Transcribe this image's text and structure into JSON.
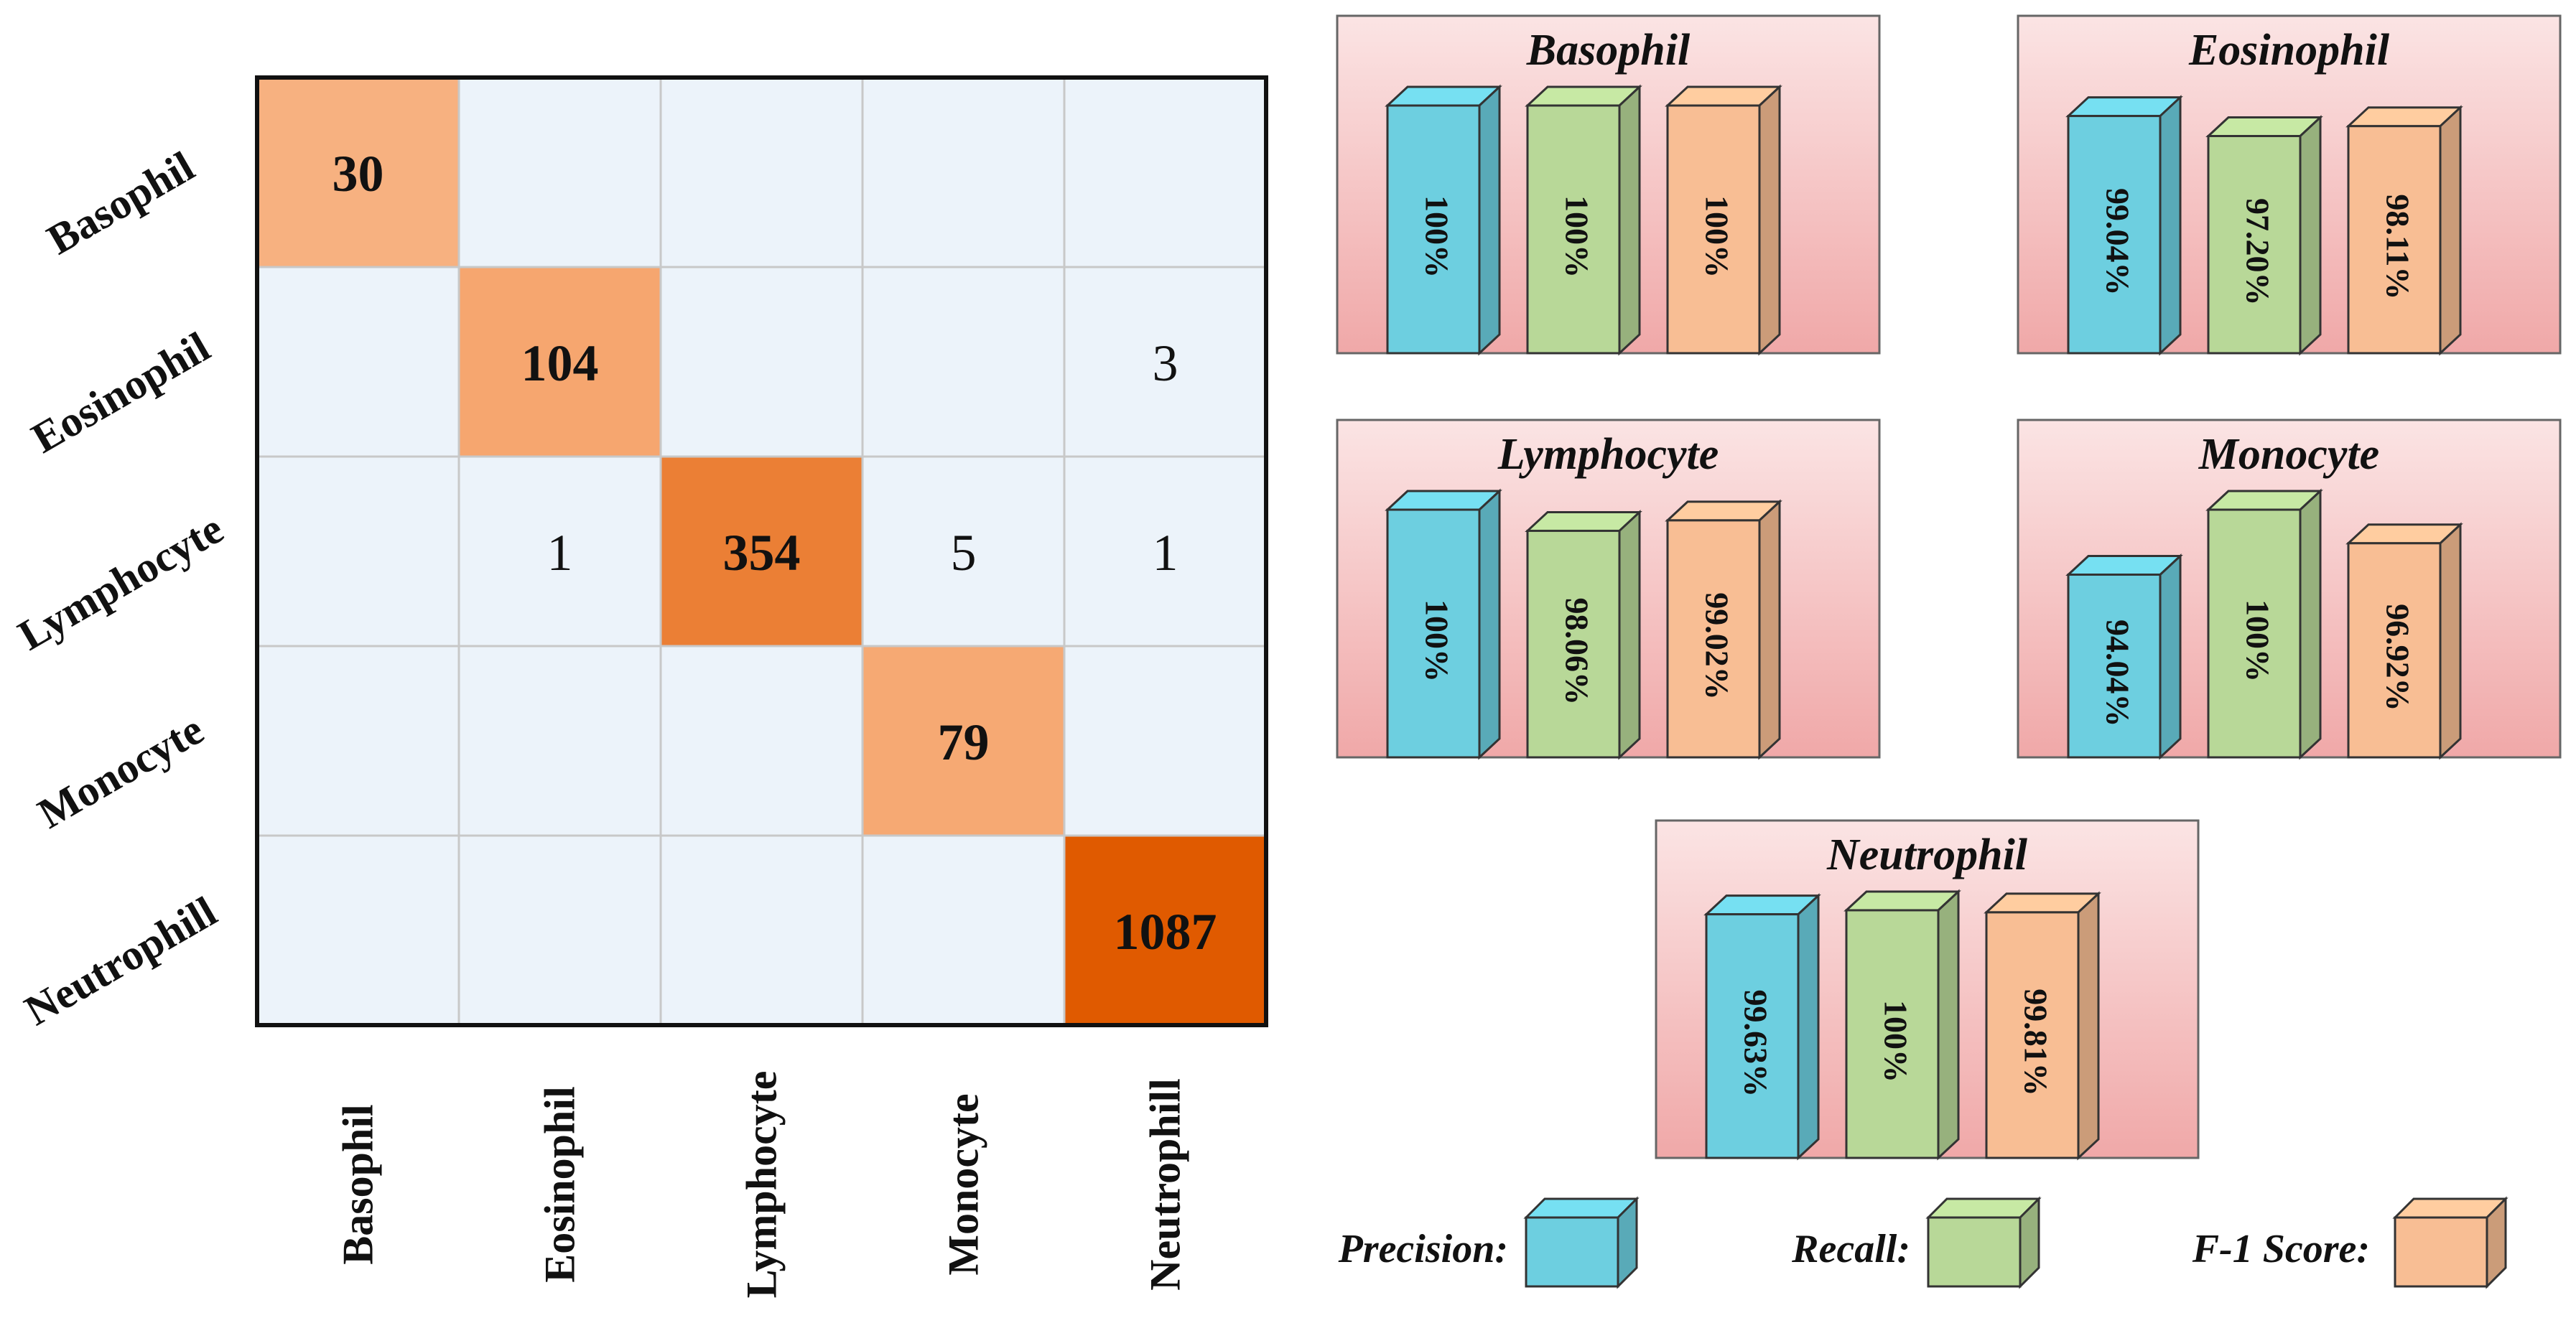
{
  "chart_data": [
    {
      "type": "heatmap",
      "rows": [
        "Basophil",
        "Eosinophil",
        "Lymphocyte",
        "Monocyte",
        "Neutrophill"
      ],
      "columns": [
        "Basophil",
        "Eosinophil",
        "Lymphocyte",
        "Monocyte",
        "Neutrophill"
      ],
      "values": [
        [
          30,
          null,
          null,
          null,
          null
        ],
        [
          null,
          104,
          null,
          null,
          3
        ],
        [
          null,
          1,
          354,
          5,
          1
        ],
        [
          null,
          null,
          null,
          79,
          null
        ],
        [
          null,
          null,
          null,
          null,
          1087
        ]
      ],
      "color_scale": [
        "#fde4d3",
        "#f8ba8e",
        "#f6a66f",
        "#e05a00"
      ],
      "background": "#ecf3fa"
    },
    {
      "type": "bar",
      "categories": [
        "Basophil",
        "Eosinophil",
        "Lymphocyte",
        "Monocyte",
        "Neutrophil"
      ],
      "series": [
        {
          "name": "Precision:",
          "color": "#6dcfe0",
          "values": [
            100,
            99.04,
            100,
            94.04,
            99.63
          ],
          "labels": [
            "100%",
            "99.04%",
            "100%",
            "94.04%",
            "99.63%"
          ]
        },
        {
          "name": "Recall:",
          "color": "#b8d898",
          "values": [
            100,
            97.2,
            98.06,
            100,
            100
          ],
          "labels": [
            "100%",
            "97.20%",
            "98.06%",
            "100%",
            "100%"
          ]
        },
        {
          "name": "F-1 Score:",
          "color": "#f8be94",
          "values": [
            100,
            98.11,
            99.02,
            96.92,
            99.81
          ],
          "labels": [
            "100%",
            "98.11%",
            "99.02%",
            "96.92%",
            "99.81%"
          ]
        }
      ],
      "legend": "bottom",
      "panel_gradient": [
        "#fbe4e4",
        "#f0a8a8"
      ]
    }
  ]
}
